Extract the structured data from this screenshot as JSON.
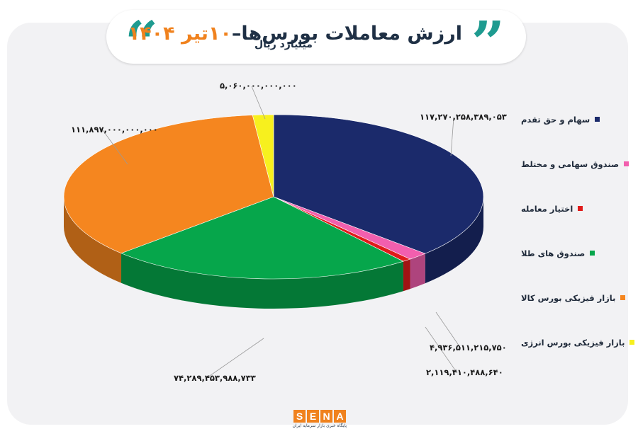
{
  "header": {
    "title_main": "ارزش معاملات بورس‌ها–",
    "title_date": "۱۰تیر ۱۴۰۴",
    "quote_open": "“",
    "quote_close": "”"
  },
  "colors": {
    "accent": "#f0821e",
    "teal": "#1e9b90",
    "navy": "#1f3045",
    "card_bg": "#f2f2f4"
  },
  "chart_data": {
    "type": "pie",
    "title": "ارزش معاملات بورس‌ها– ۱۰تیر ۱۴۰۴",
    "unit": "میلیارد ریال",
    "legend_position": "right",
    "series": [
      {
        "name": "سهام و حق تقدم",
        "value": 117270258389053,
        "label": "۱۱۷,۲۷۰,۲۵۸,۳۸۹,۰۵۳",
        "color": "#1b2a6b"
      },
      {
        "name": "صندوق سهامی و مختلط",
        "value": 4936511215750,
        "label": "۴,۹۳۶,۵۱۱,۲۱۵,۷۵۰",
        "color": "#f25fae"
      },
      {
        "name": "اختیار معامله",
        "value": 2119410488640,
        "label": "۲,۱۱۹,۴۱۰,۴۸۸,۶۴۰",
        "color": "#e01b1b"
      },
      {
        "name": "صندوق های طلا",
        "value": 74289453988733,
        "label": "۷۴,۲۸۹,۴۵۳,۹۸۸,۷۳۳",
        "color": "#06a64b"
      },
      {
        "name": "بازار فیزیکی بورس کالا",
        "value": 111897000000000,
        "label": "۱۱۱,۸۹۷,۰۰۰,۰۰۰,۰۰۰",
        "color": "#f5861f"
      },
      {
        "name": "بازار فیزیکی بورس انرژی",
        "value": 5060000000000,
        "label": "۵,۰۶۰,۰۰۰,۰۰۰,۰۰۰",
        "color": "#f7f01e"
      }
    ]
  },
  "logo": {
    "letters": [
      "S",
      "E",
      "N",
      "A"
    ],
    "tagline": "پایگاه خبری بازار سرمایه ایران"
  }
}
